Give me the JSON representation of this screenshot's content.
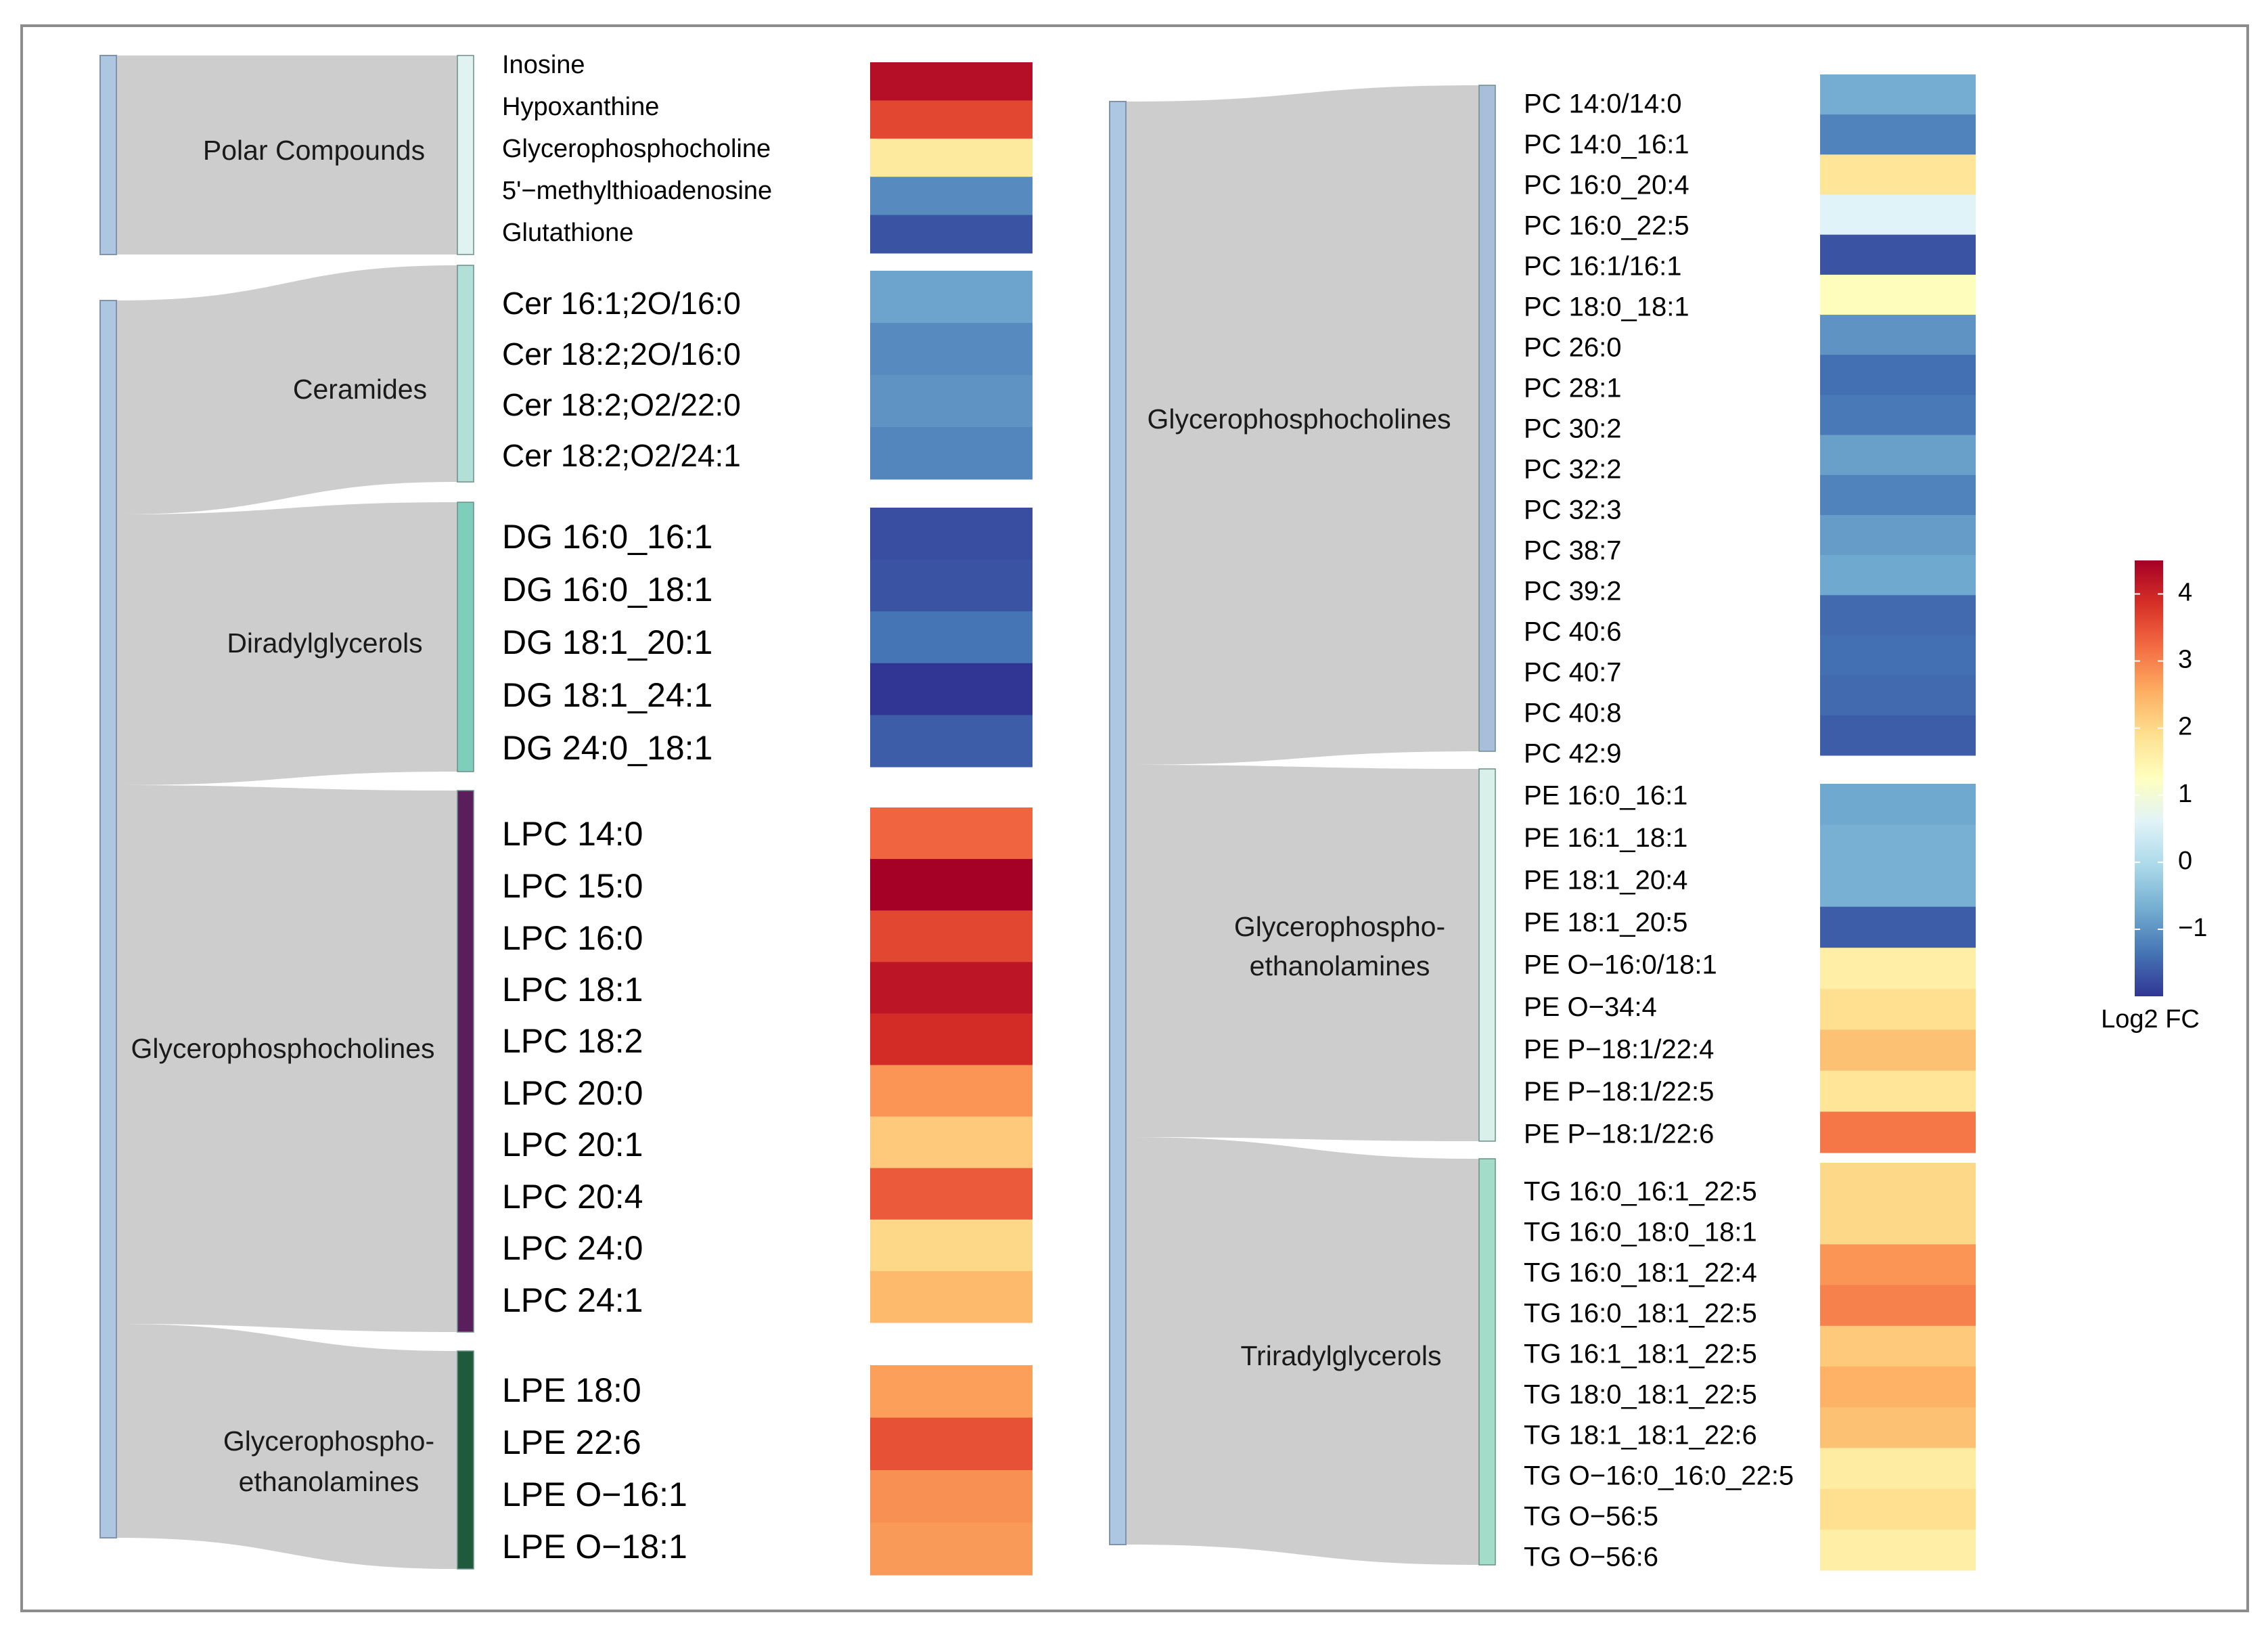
{
  "colors": {
    "flow": "#cdcdcd",
    "source_bar": "#adc7e3",
    "border": "#8c8c8c",
    "scale": [
      "#313695",
      "#4575b4",
      "#74add1",
      "#abd9e9",
      "#e0f3f8",
      "#ffffbf",
      "#fee090",
      "#fdae61",
      "#f46d43",
      "#d73027",
      "#a50026"
    ]
  },
  "chart_data": {
    "type": "heatmap",
    "title": "",
    "value_label": "Log2 FC",
    "value_range": [
      -2.0,
      4.5
    ],
    "legend": {
      "position": "right",
      "title": "Log2 FC",
      "ticks": [
        4,
        3,
        2,
        1,
        0,
        -1
      ],
      "tick_labels": [
        "4",
        "3",
        "2",
        "1",
        "0",
        "−1"
      ]
    },
    "panels": [
      {
        "name": "left",
        "groups": [
          {
            "name_lines": [
              "Polar Compounds"
            ],
            "bar_color": "#e0f3f0",
            "items": [
              {
                "label": "Inosine",
                "value": 4.3
              },
              {
                "label": "Hypoxanthine",
                "value": 3.6
              },
              {
                "label": "Glycerophosphocholine",
                "value": 1.7
              },
              {
                "label": "5'−methylthioadenosine",
                "value": -1.1
              },
              {
                "label": "Glutathione",
                "value": -1.7
              }
            ]
          },
          {
            "name_lines": [
              "Ceramides"
            ],
            "bar_color": "#b2e0d8",
            "items": [
              {
                "label": "Cer 16:1;2O/16:0",
                "value": -0.8
              },
              {
                "label": "Cer 18:2;2O/16:0",
                "value": -1.1
              },
              {
                "label": "Cer 18:2;O2/22:0",
                "value": -1.0
              },
              {
                "label": "Cer 18:2;O2/24:1",
                "value": -1.15
              }
            ]
          },
          {
            "name_lines": [
              "Diradylglycerols"
            ],
            "bar_color": "#7fcdbb",
            "items": [
              {
                "label": "DG 16:0_16:1",
                "value": -1.75
              },
              {
                "label": "DG 16:0_18:1",
                "value": -1.7
              },
              {
                "label": "DG 18:1_20:1",
                "value": -1.35
              },
              {
                "label": "DG 18:1_24:1",
                "value": -2.0
              },
              {
                "label": "DG 24:0_18:1",
                "value": -1.6
              }
            ]
          },
          {
            "name_lines": [
              "Glycerophosphocholines"
            ],
            "bar_color": "#5a1e5c",
            "items": [
              {
                "label": "LPC 14:0",
                "value": 3.3
              },
              {
                "label": "LPC 15:0",
                "value": 4.5
              },
              {
                "label": "LPC 16:0",
                "value": 3.6
              },
              {
                "label": "LPC 18:1",
                "value": 4.2
              },
              {
                "label": "LPC 18:2",
                "value": 3.9
              },
              {
                "label": "LPC 20:0",
                "value": 2.8
              },
              {
                "label": "LPC 20:1",
                "value": 2.2
              },
              {
                "label": "LPC 20:4",
                "value": 3.4
              },
              {
                "label": "LPC 24:0",
                "value": 2.0
              },
              {
                "label": "LPC 24:1",
                "value": 2.4
              }
            ]
          },
          {
            "name_lines": [
              "Glycerophospho-",
              "ethanolamines"
            ],
            "bar_color": "#1f5a3c",
            "items": [
              {
                "label": "LPE 18:0",
                "value": 2.7
              },
              {
                "label": "LPE 22:6",
                "value": 3.5
              },
              {
                "label": "LPE O−16:1",
                "value": 2.85
              },
              {
                "label": "LPE O−18:1",
                "value": 2.75
              }
            ]
          }
        ]
      },
      {
        "name": "right",
        "groups": [
          {
            "name_lines": [
              "Glycerophosphocholines"
            ],
            "bar_color": "#a8bedb",
            "items": [
              {
                "label": "PC 14:0/14:0",
                "value": -0.7
              },
              {
                "label": "PC 14:0_16:1",
                "value": -1.2
              },
              {
                "label": "PC 16:0_20:4",
                "value": 1.8
              },
              {
                "label": "PC 16:0_22:5",
                "value": 0.6
              },
              {
                "label": "PC 16:1/16:1",
                "value": -1.7
              },
              {
                "label": "PC 18:0_18:1",
                "value": 1.3
              },
              {
                "label": "PC 26:0",
                "value": -1.0
              },
              {
                "label": "PC 28:1",
                "value": -1.4
              },
              {
                "label": "PC 30:2",
                "value": -1.3
              },
              {
                "label": "PC 32:2",
                "value": -0.85
              },
              {
                "label": "PC 32:3",
                "value": -1.2
              },
              {
                "label": "PC 38:7",
                "value": -0.9
              },
              {
                "label": "PC 39:2",
                "value": -0.75
              },
              {
                "label": "PC 40:6",
                "value": -1.45
              },
              {
                "label": "PC 40:7",
                "value": -1.4
              },
              {
                "label": "PC 40:8",
                "value": -1.45
              },
              {
                "label": "PC 42:9",
                "value": -1.6
              }
            ]
          },
          {
            "name_lines": [
              "Glycerophospho-",
              "ethanolamines"
            ],
            "bar_color": "#d8efea",
            "items": [
              {
                "label": "PE 16:0_16:1",
                "value": -0.75
              },
              {
                "label": "PE 16:1_18:1",
                "value": -0.65
              },
              {
                "label": "PE 18:1_20:4",
                "value": -0.65
              },
              {
                "label": "PE 18:1_20:5",
                "value": -1.6
              },
              {
                "label": "PE O−16:0/18:1",
                "value": 1.6
              },
              {
                "label": "PE O−34:4",
                "value": 1.9
              },
              {
                "label": "PE P−18:1/22:4",
                "value": 2.3
              },
              {
                "label": "PE P−18:1/22:5",
                "value": 1.8
              },
              {
                "label": "PE P−18:1/22:6",
                "value": 3.1
              }
            ]
          },
          {
            "name_lines": [
              "Triradylglycerols"
            ],
            "bar_color": "#a3dcc9",
            "items": [
              {
                "label": "TG 16:0_16:1_22:5",
                "value": 2.0
              },
              {
                "label": "TG 16:0_18:0_18:1",
                "value": 2.0
              },
              {
                "label": "TG 16:0_18:1_22:4",
                "value": 2.8
              },
              {
                "label": "TG 16:0_18:1_22:5",
                "value": 3.0
              },
              {
                "label": "TG 16:1_18:1_22:5",
                "value": 2.2
              },
              {
                "label": "TG 18:0_18:1_22:5",
                "value": 2.5
              },
              {
                "label": "TG 18:1_18:1_22:6",
                "value": 2.3
              },
              {
                "label": "TG O−16:0_16:0_22:5",
                "value": 1.65
              },
              {
                "label": "TG O−56:5",
                "value": 1.9
              },
              {
                "label": "TG O−56:6",
                "value": 1.6
              }
            ]
          }
        ]
      }
    ]
  }
}
